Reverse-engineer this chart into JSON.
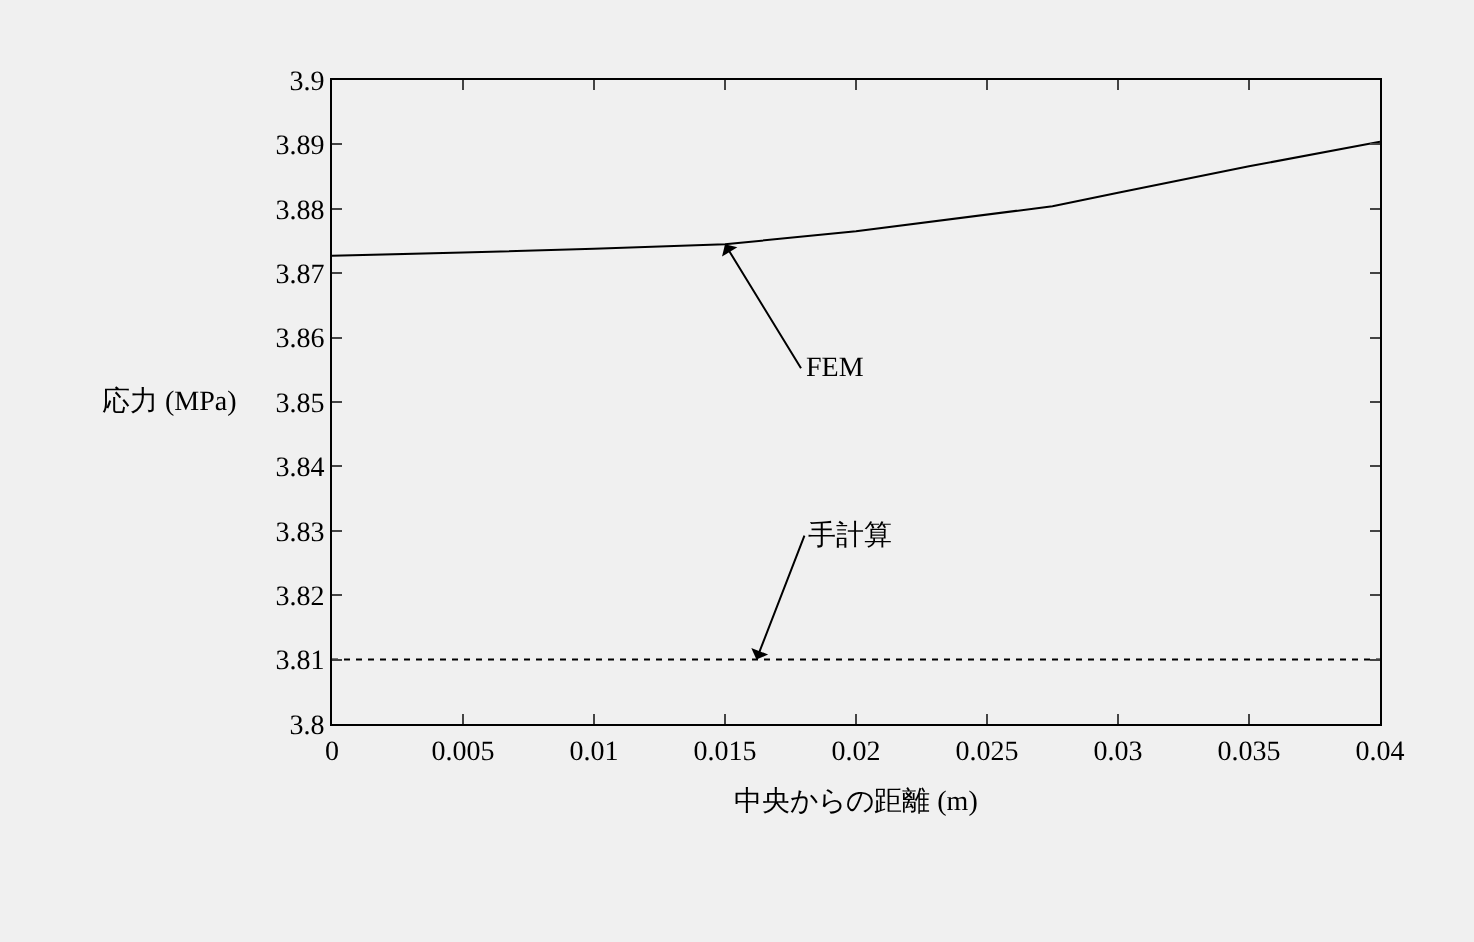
{
  "chart_data": {
    "type": "line",
    "xlabel": "中央からの距離 (m)",
    "ylabel": "応力 (MPa)",
    "xlim": [
      0,
      0.04
    ],
    "xticks": [
      0,
      0.005,
      0.01,
      0.015,
      0.02,
      0.025,
      0.03,
      0.035,
      0.04
    ],
    "ylim": [
      3.8,
      3.9
    ],
    "yticks": [
      3.8,
      3.81,
      3.82,
      3.83,
      3.84,
      3.85,
      3.86,
      3.87,
      3.88,
      3.89,
      3.9
    ],
    "grid": false,
    "marker": "none",
    "series": [
      {
        "x": [
          0,
          0.005,
          0.01,
          0.015,
          0.02,
          0.0275,
          0.03,
          0.035,
          0.04
        ],
        "values": [
          3.8727,
          3.8732,
          3.8738,
          3.8745,
          3.8765,
          3.8804,
          3.8825,
          3.8866,
          3.8904
        ],
        "color": "#000000",
        "line_style": "solid"
      },
      {
        "x": [
          0,
          0.04
        ],
        "values": [
          3.81,
          3.81
        ],
        "color": "#000000",
        "line_style": "dotted"
      }
    ],
    "annotations": [
      {
        "text": "FEM",
        "x": 0.015,
        "y": 3.8745
      },
      {
        "text": "手計算",
        "x": 0.0162,
        "y": 3.81
      }
    ]
  }
}
